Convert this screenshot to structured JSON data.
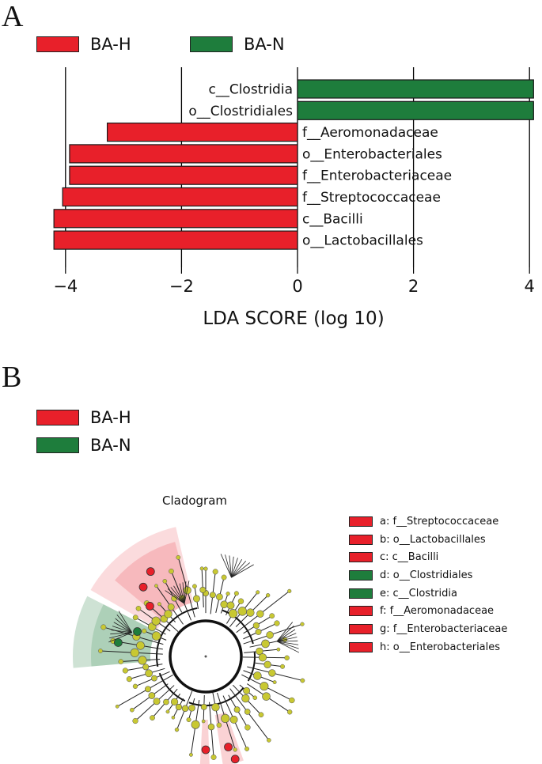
{
  "panel_a": {
    "letter": "A",
    "legend": [
      {
        "label": "BA-H",
        "color": "#e8202a"
      },
      {
        "label": "BA-N",
        "color": "#1e7d3c"
      }
    ]
  },
  "panel_b": {
    "letter": "B",
    "legend": [
      {
        "label": "BA-H",
        "color": "#e8202a"
      },
      {
        "label": "BA-N",
        "color": "#1e7d3c"
      }
    ],
    "cladogram_title": "Cladogram",
    "cladogram_legend": [
      {
        "key": "a",
        "text": "a: f__Streptococcaceae",
        "color": "#e8202a"
      },
      {
        "key": "b",
        "text": "b: o__Lactobacillales",
        "color": "#e8202a"
      },
      {
        "key": "c",
        "text": "c: c__Bacilli",
        "color": "#e8202a"
      },
      {
        "key": "d",
        "text": "d: o__Clostridiales",
        "color": "#1e7d3c"
      },
      {
        "key": "e",
        "text": "e: c__Clostridia",
        "color": "#1e7d3c"
      },
      {
        "key": "f",
        "text": "f: f__Aeromonadaceae",
        "color": "#e8202a"
      },
      {
        "key": "g",
        "text": "g: f__Enterobacteriaceae",
        "color": "#e8202a"
      },
      {
        "key": "h",
        "text": "h: o__Enterobacteriales",
        "color": "#e8202a"
      }
    ]
  },
  "chart_data": [
    {
      "type": "bar",
      "orientation": "horizontal",
      "xlabel": "LDA SCORE (log 10)",
      "xlim": [
        -4.4,
        4.1
      ],
      "xticks": [
        -4,
        -2,
        0,
        2,
        4
      ],
      "xtick_labels": [
        "−4",
        "−2",
        "0",
        "2",
        "4"
      ],
      "grid": "vertical lines at ticks",
      "legend_placement": "top-left",
      "categories": [
        "c__Clostridia",
        "o__Clostridiales",
        "f__Aeromonadaceae",
        "o__Enterobacteriales",
        "f__Enterobacteriaceae",
        "f__Streptococcaceae",
        "c__Bacilli",
        "o__Lactobacillales"
      ],
      "series": [
        {
          "name": "BA-N",
          "color": "#1e7d3c",
          "values": [
            4.07,
            4.07,
            null,
            null,
            null,
            null,
            null,
            null
          ]
        },
        {
          "name": "BA-H",
          "color": "#e8202a",
          "values": [
            null,
            null,
            -3.28,
            -3.93,
            -3.93,
            -4.05,
            -4.2,
            -4.2
          ]
        }
      ]
    },
    {
      "type": "cladogram",
      "title": "Cladogram",
      "highlighted_clades": [
        {
          "key": "a",
          "name": "f__Streptococcaceae",
          "group": "BA-H"
        },
        {
          "key": "b",
          "name": "o__Lactobacillales",
          "group": "BA-H"
        },
        {
          "key": "c",
          "name": "c__Bacilli",
          "group": "BA-H"
        },
        {
          "key": "d",
          "name": "o__Clostridiales",
          "group": "BA-N"
        },
        {
          "key": "e",
          "name": "c__Clostridia",
          "group": "BA-N"
        },
        {
          "key": "f",
          "name": "f__Aeromonadaceae",
          "group": "BA-H"
        },
        {
          "key": "g",
          "name": "f__Enterobacteriaceae",
          "group": "BA-H"
        },
        {
          "key": "h",
          "name": "o__Enterobacteriales",
          "group": "BA-H"
        }
      ]
    }
  ]
}
